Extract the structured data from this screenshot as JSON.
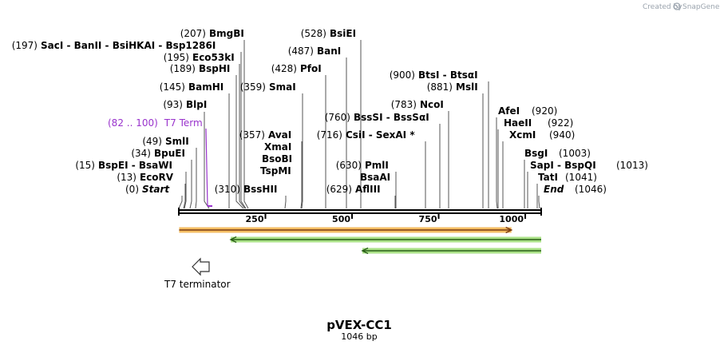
{
  "credit": "Created by",
  "brand": "SnapGene",
  "plasmid": {
    "name": "pVEX-CC1",
    "length_label": "1046 bp",
    "length": 1046
  },
  "ruler": [
    {
      "bp": 250,
      "label": "250"
    },
    {
      "bp": 500,
      "label": "500"
    },
    {
      "bp": 750,
      "label": "750"
    },
    {
      "bp": 1000,
      "label": "1000"
    }
  ],
  "sites": [
    {
      "bp": 0,
      "pos": "(0)",
      "name": "Start",
      "italic": true
    },
    {
      "bp": 13,
      "pos": "(13)",
      "name": "EcoRV"
    },
    {
      "bp": 15,
      "pos": "(15)",
      "name": "BspEI  - BsaWI"
    },
    {
      "bp": 34,
      "pos": "(34)",
      "name": "BpuEI"
    },
    {
      "bp": 49,
      "pos": "(49)",
      "name": "SmlI"
    },
    {
      "bp": 93,
      "pos": "(93)",
      "name": "BlpI"
    },
    {
      "bp": 145,
      "pos": "(145)",
      "name": "BamHI"
    },
    {
      "bp": 189,
      "pos": "(189)",
      "name": "BspHI"
    },
    {
      "bp": 195,
      "pos": "(195)",
      "name": "Eco53kI"
    },
    {
      "bp": 197,
      "pos": "(197)",
      "name": "SacI  - BanII  - BsiHKAI  - Bsp1286I"
    },
    {
      "bp": 207,
      "pos": "(207)",
      "name": "BmgBI"
    },
    {
      "bp": 310,
      "pos": "(310)",
      "name": "BssHII"
    },
    {
      "bp": 357,
      "pos": "(357)",
      "name": "AvaI"
    },
    {
      "bp": 357,
      "pos": "",
      "name": "XmaI"
    },
    {
      "bp": 357,
      "pos": "",
      "name": "BsoBI"
    },
    {
      "bp": 357,
      "pos": "",
      "name": "TspMI"
    },
    {
      "bp": 359,
      "pos": "(359)",
      "name": "SmaI"
    },
    {
      "bp": 428,
      "pos": "(428)",
      "name": "PfoI"
    },
    {
      "bp": 487,
      "pos": "(487)",
      "name": "BanI"
    },
    {
      "bp": 528,
      "pos": "(528)",
      "name": "BsiEI"
    },
    {
      "bp": 629,
      "pos": "(629)",
      "name": "AflIII"
    },
    {
      "bp": 630,
      "pos": "(630)",
      "name": "PmlI"
    },
    {
      "bp": 630,
      "pos": "",
      "name": "BsaAI"
    },
    {
      "bp": 716,
      "pos": "(716)",
      "name": "CsiI  - SexAI *"
    },
    {
      "bp": 760,
      "pos": "(760)",
      "name": "BssSI  - BssSαI"
    },
    {
      "bp": 783,
      "pos": "(783)",
      "name": "NcoI"
    },
    {
      "bp": 881,
      "pos": "(881)",
      "name": "MslI"
    },
    {
      "bp": 900,
      "pos": "(900)",
      "name": "BtsI  - BtsαI"
    },
    {
      "bp": 920,
      "pos": "(920)",
      "name": "AfeI"
    },
    {
      "bp": 922,
      "pos": "(922)",
      "name": "HaeII"
    },
    {
      "bp": 940,
      "pos": "(940)",
      "name": "XcmI"
    },
    {
      "bp": 1003,
      "pos": "(1003)",
      "name": "BsgI"
    },
    {
      "bp": 1013,
      "pos": "(1013)",
      "name": "SapI  - BspQI"
    },
    {
      "bp": 1041,
      "pos": "(1041)",
      "name": "TatI"
    },
    {
      "bp": 1046,
      "pos": "(1046)",
      "name": "End",
      "italic": true
    }
  ],
  "features": {
    "t7_term": {
      "range": "(82 .. 100)",
      "name": "T7 Term",
      "start": 82,
      "end": 100
    },
    "t7_terminator": {
      "name": "T7 terminator"
    },
    "bars": [
      {
        "start": 1,
        "end": 960,
        "direction": "forward",
        "color": "#f0a830",
        "line": "#7a3a10"
      },
      {
        "start": 150,
        "end": 1046,
        "direction": "reverse",
        "color": "#8fd860",
        "line": "#2a6018"
      },
      {
        "start": 530,
        "end": 1046,
        "direction": "reverse",
        "color": "#8fd860",
        "line": "#2a6018"
      }
    ]
  },
  "colors": {
    "feature_text": "#9933cc",
    "credit": "#9aa3ad",
    "brand": "#2f8bd0"
  }
}
